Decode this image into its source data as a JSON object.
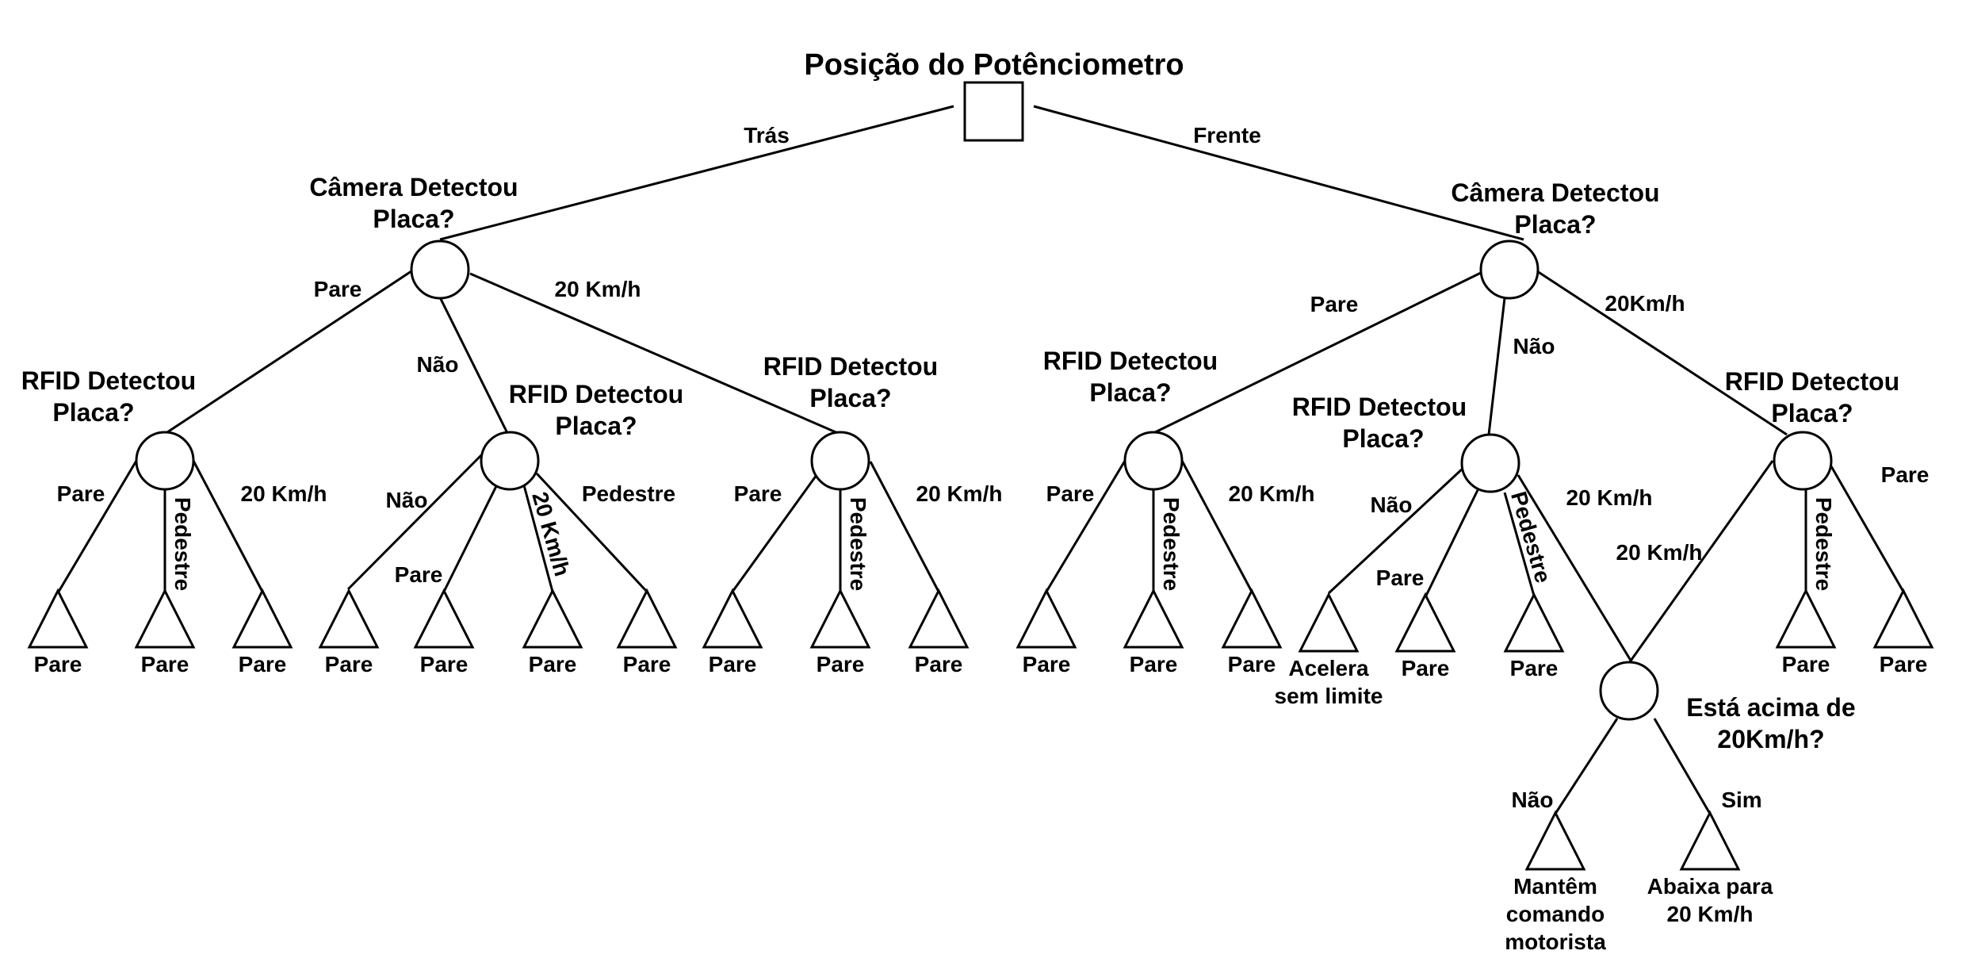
{
  "root": {
    "title": "Posição do Potênciometro"
  },
  "questions": {
    "cam_l": [
      "Câmera Detectou",
      "Placa?"
    ],
    "cam_r": [
      "Câmera Detectou",
      "Placa?"
    ],
    "rf1": [
      "RFID Detectou",
      "Placa?"
    ],
    "rf2": [
      "RFID Detectou",
      "Placa?"
    ],
    "rf3": [
      "RFID Detectou",
      "Placa?"
    ],
    "rf4": [
      "RFID Detectou",
      "Placa?"
    ],
    "rf5": [
      "RFID Detectou",
      "Placa?"
    ],
    "rf6": [
      "RFID Detectou",
      "Placa?"
    ],
    "speed": [
      "Está acima de",
      "20Km/h?"
    ]
  },
  "edges": {
    "root_cam_l": "Trás",
    "root_cam_r": "Frente",
    "caml_rf1": "Pare",
    "caml_rf2": "Não",
    "caml_rf3": "20 Km/h",
    "camr_rf4": "Pare",
    "camr_rf5": "Não",
    "camr_rf6": "20Km/h",
    "rf1_l1": "Pare",
    "rf1_l2": "Pedestre",
    "rf1_l3": "20 Km/h",
    "rf2_l4": "Não",
    "rf2_l5": "Pare",
    "rf2_l6": "20 Km/h",
    "rf2_l7": "Pedestre",
    "rf3_l8": "Pare",
    "rf3_l9": "Pedestre",
    "rf3_l10": "20 Km/h",
    "rf4_l11": "Pare",
    "rf4_l12": "Pedestre",
    "rf4_l13": "20 Km/h",
    "rf5_l14": "Não",
    "rf5_l15": "Pare",
    "rf5_l16": "Pedestre",
    "rf5_speed": "20 Km/h",
    "rf6_speed": "20 Km/h",
    "rf6_l17": "Pedestre",
    "rf6_l18": "Pare",
    "speed_l19": "Não",
    "speed_l20": "Sim"
  },
  "leaves": {
    "l1": [
      "Pare"
    ],
    "l2": [
      "Pare"
    ],
    "l3": [
      "Pare"
    ],
    "l4": [
      "Pare"
    ],
    "l5": [
      "Pare"
    ],
    "l6": [
      "Pare"
    ],
    "l7": [
      "Pare"
    ],
    "l8": [
      "Pare"
    ],
    "l9": [
      "Pare"
    ],
    "l10": [
      "Pare"
    ],
    "l11": [
      "Pare"
    ],
    "l12": [
      "Pare"
    ],
    "l13": [
      "Pare"
    ],
    "l14": [
      "Acelera",
      "sem limite"
    ],
    "l15": [
      "Pare"
    ],
    "l16": [
      "Pare"
    ],
    "l17": [
      "Pare"
    ],
    "l18": [
      "Pare"
    ],
    "l19": [
      "Mantêm",
      "comando",
      "motorista"
    ],
    "l20": [
      "Abaixa para",
      "20 Km/h"
    ]
  }
}
